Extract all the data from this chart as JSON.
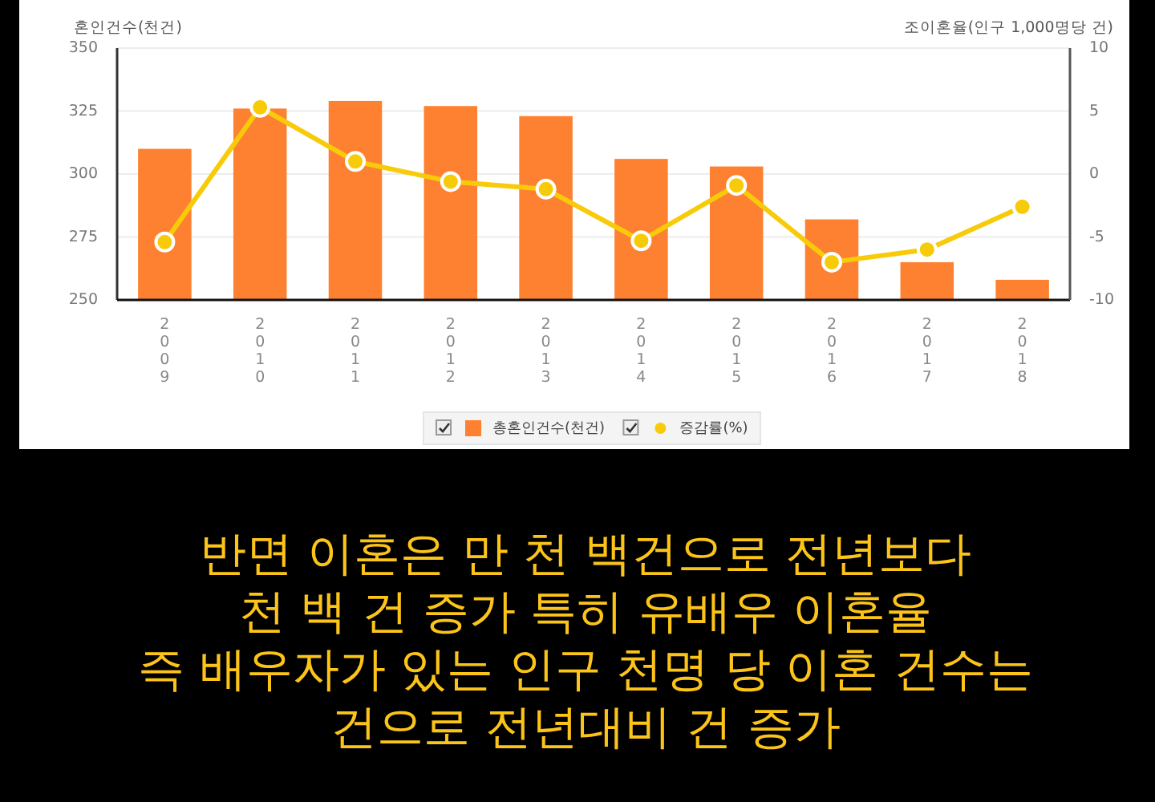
{
  "chart_data": {
    "type": "bar",
    "ylabel": "혼인건수(천건)",
    "y2label": "조이혼율(인구 1,000명당 건)",
    "categories": [
      "2009",
      "2010",
      "2011",
      "2012",
      "2013",
      "2014",
      "2015",
      "2016",
      "2017",
      "2018"
    ],
    "series": [
      {
        "name": "총혼인건수(천건)",
        "color": "#fd8130",
        "values": [
          310,
          326,
          329,
          327,
          323,
          306,
          303,
          282,
          265,
          258
        ]
      },
      {
        "name": "증감률(%)",
        "type": "line",
        "axis": "y2",
        "color": "#f7cb0a",
        "marker": "circle",
        "values": [
          -5.4,
          5.3,
          1.0,
          -0.6,
          -1.2,
          -5.3,
          -0.9,
          -7.0,
          -6.0,
          -2.6
        ]
      }
    ],
    "ylim": [
      250,
      350
    ],
    "yticks": [
      250,
      275,
      300,
      325,
      350
    ],
    "y2lim": [
      -10,
      10
    ],
    "y2ticks": [
      -10,
      -5,
      0,
      5,
      10
    ],
    "grid": "y",
    "legend": "bottom",
    "annotations": [
      "반면 이혼은 만 천 백건으로 전년보다",
      "천 백 건 증가 특히 유배우 이혼율",
      "즉 배우자가 있는 인구 천명 당 이혼 건수는",
      "건으로 전년대비 건 증가"
    ]
  }
}
